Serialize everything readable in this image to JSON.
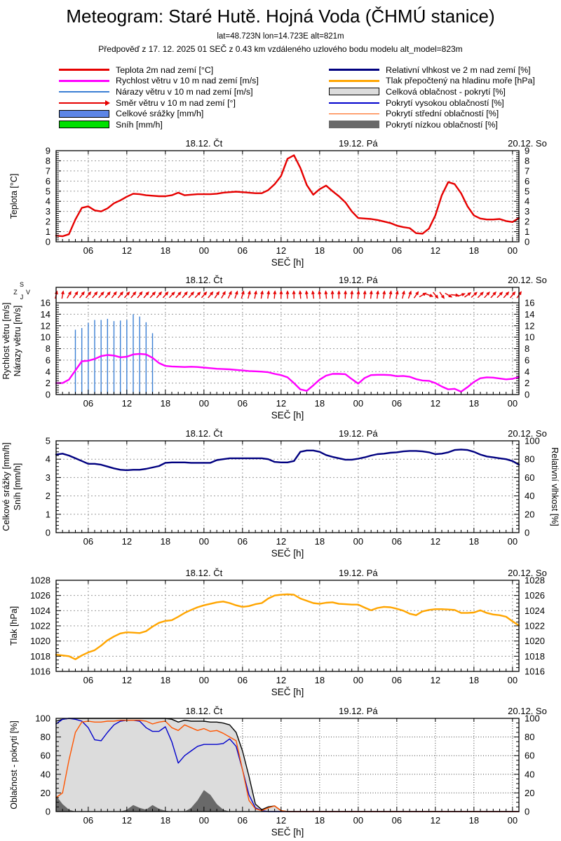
{
  "header": {
    "title": "Meteogram: Staré Hutě. Hojná Voda (ČHMÚ stanice)",
    "subtitle1": "lat=48.723N lon=14.723E alt=821m",
    "subtitle2": "Předpověď z 17. 12. 2025 01 SEČ z 0.43 km vzdáleného uzlového bodu modelu alt_model=823m"
  },
  "legend": {
    "left": [
      {
        "label": "Teplota 2m nad zemí [°C]",
        "swatch": "line-thick",
        "color": "#e60000"
      },
      {
        "label": "Rychlost větru v 10 m nad zemí [m/s]",
        "swatch": "line-thick",
        "color": "#ff00ff"
      },
      {
        "label": "Nárazy větru v 10 m nad zemí [m/s]",
        "swatch": "line-thin",
        "color": "#3b7fd4"
      },
      {
        "label": "Směr větru v 10 m nad zemí [°]",
        "swatch": "arrow",
        "color": "#e60000"
      },
      {
        "label": "Celkové srážky [mm/h]",
        "swatch": "box",
        "color": "#5c85e6"
      },
      {
        "label": "Sníh [mm/h]",
        "swatch": "box",
        "color": "#00e000"
      }
    ],
    "right": [
      {
        "label": "Relativní vlhkost ve 2 m nad zemí [%]",
        "swatch": "line-thick",
        "color": "#000080"
      },
      {
        "label": "Tlak přepočtený na hladinu moře [hPa]",
        "swatch": "line-thick",
        "color": "#ffa500"
      },
      {
        "label": "Celková oblačnost - pokrytí [%]",
        "swatch": "box",
        "color": "#dcdcdc"
      },
      {
        "label": "Pokrytí vysokou oblačností [%]",
        "swatch": "line-thin",
        "color": "#0000cc"
      },
      {
        "label": "Pokrytí střední oblačností [%]",
        "swatch": "line-thin",
        "color": "#ff5500"
      },
      {
        "label": "Pokrytí nízkou oblačností [%]",
        "swatch": "box-noborder",
        "color": "#696969"
      }
    ]
  },
  "axis": {
    "xlabel": "SEČ [h]",
    "x_start": "17.12. 01:00 SEČ",
    "x_step_hours": 1,
    "x_tick_hours": [
      6,
      12,
      18,
      24,
      30,
      36,
      42,
      48,
      54,
      60,
      66,
      72
    ],
    "x_tick_labels": [
      "06",
      "12",
      "18",
      "00",
      "06",
      "12",
      "18",
      "00",
      "06",
      "12",
      "18",
      "00"
    ],
    "day_labels": [
      {
        "hour": 24,
        "label": "18.12. Čt"
      },
      {
        "hour": 48,
        "label": "19.12. Pá"
      },
      {
        "hour": 72,
        "label": "20.12. So"
      }
    ],
    "compass": {
      "n": "S",
      "s": "J",
      "e": "V",
      "w": "Z"
    }
  },
  "chart_data": [
    {
      "type": "line",
      "name": "temperature",
      "ylabel": "Teplota [°C]",
      "ylim": [
        0,
        9
      ],
      "yticks": [
        0,
        1,
        2,
        3,
        4,
        5,
        6,
        7,
        8,
        9
      ],
      "series": [
        {
          "name": "Teplota 2m nad zemí [°C]",
          "color": "#e60000",
          "values": [
            0.6,
            0.55,
            0.75,
            2.2,
            3.35,
            3.5,
            3.1,
            3.0,
            3.3,
            3.8,
            4.1,
            4.45,
            4.75,
            4.7,
            4.6,
            4.55,
            4.5,
            4.5,
            4.6,
            4.85,
            4.6,
            4.65,
            4.7,
            4.7,
            4.7,
            4.75,
            4.85,
            4.9,
            4.95,
            4.9,
            4.85,
            4.8,
            4.8,
            5.1,
            5.7,
            6.5,
            8.2,
            8.55,
            7.3,
            5.6,
            4.65,
            5.2,
            5.55,
            5.0,
            4.5,
            3.9,
            3.0,
            2.35,
            2.3,
            2.25,
            2.15,
            2.0,
            1.85,
            1.6,
            1.45,
            1.35,
            0.85,
            0.8,
            1.3,
            2.6,
            4.6,
            5.9,
            5.7,
            4.8,
            3.5,
            2.6,
            2.3,
            2.2,
            2.2,
            2.25,
            2.05,
            1.95,
            2.35
          ]
        }
      ]
    },
    {
      "type": "line+bars+arrows",
      "name": "wind",
      "ylabel_lines": [
        "Rychlost větru [m/s]",
        "Nárazy větru [m/s]"
      ],
      "ylim": [
        0,
        16
      ],
      "yticks": [
        0,
        2,
        4,
        6,
        8,
        10,
        12,
        14,
        16
      ],
      "series": [
        {
          "name": "Rychlost větru v 10 m nad zemí [m/s]",
          "type": "line",
          "color": "#ff00ff",
          "values": [
            2.0,
            2.0,
            2.6,
            4.2,
            5.8,
            5.9,
            6.2,
            6.7,
            6.9,
            6.8,
            6.5,
            6.6,
            7.0,
            7.1,
            7.0,
            6.4,
            5.5,
            5.0,
            4.9,
            4.85,
            4.8,
            4.85,
            4.8,
            4.7,
            4.6,
            4.5,
            4.45,
            4.4,
            4.3,
            4.2,
            4.1,
            4.05,
            4.0,
            3.9,
            3.6,
            3.4,
            3.0,
            2.0,
            0.9,
            0.65,
            1.6,
            2.6,
            3.3,
            3.6,
            3.6,
            3.55,
            2.7,
            1.9,
            2.9,
            3.4,
            3.45,
            3.45,
            3.4,
            3.2,
            3.25,
            3.1,
            2.7,
            2.45,
            2.4,
            2.0,
            1.4,
            0.9,
            1.0,
            0.5,
            1.3,
            2.2,
            2.85,
            3.0,
            2.95,
            2.8,
            2.65,
            2.75,
            3.05
          ]
        },
        {
          "name": "Nárazy větru v 10 m nad zemí [m/s]",
          "type": "bars",
          "color": "#3b7fd4",
          "start_hour": 4,
          "values": [
            11.3,
            11.6,
            12.5,
            13.0,
            13.0,
            13.2,
            12.8,
            12.9,
            13.0,
            14.0,
            13.6,
            12.6,
            10.7
          ]
        },
        {
          "name": "Směr větru v 10 m nad zemí [°]",
          "type": "arrows",
          "color": "#e60000",
          "angles_deg": [
            75,
            80,
            60,
            55,
            52,
            50,
            50,
            48,
            50,
            52,
            50,
            48,
            50,
            52,
            50,
            48,
            50,
            48,
            46,
            48,
            50,
            48,
            46,
            48,
            50,
            55,
            60,
            65,
            70,
            72,
            75,
            78,
            80,
            82,
            85,
            88,
            90,
            92,
            95,
            97,
            98,
            96,
            95,
            92,
            90,
            88,
            86,
            85,
            85,
            84,
            83,
            82,
            80,
            78,
            76,
            70,
            55,
            30,
            -20,
            -50,
            -55,
            -30,
            -5,
            20,
            35,
            42,
            45,
            47,
            48,
            46,
            48,
            50,
            55
          ]
        }
      ]
    },
    {
      "type": "line",
      "name": "precipitation-humidity",
      "ylabel_lines": [
        "Celkové srážky [mm/h]",
        "Sníh [mm/h]"
      ],
      "ylim_left": [
        0,
        5
      ],
      "yticks_left": [
        0,
        1,
        2,
        3,
        4,
        5
      ],
      "ylabel_right": "Relativní vlhkost [%]",
      "ylim_right": [
        0,
        100
      ],
      "yticks_right": [
        0,
        20,
        40,
        60,
        80,
        100
      ],
      "series": [
        {
          "name": "Relativní vlhkost ve 2 m nad zemí [%]",
          "axis": "right",
          "color": "#000080",
          "values": [
            85,
            86,
            84,
            81,
            78,
            75,
            75,
            74,
            72,
            70,
            68.5,
            68,
            68.5,
            68.5,
            69.5,
            71,
            72.5,
            76,
            76.5,
            76.5,
            76.5,
            76,
            76,
            76,
            76,
            79,
            80,
            81,
            81,
            81,
            81,
            81,
            81,
            80,
            77,
            76.5,
            76.5,
            78,
            88,
            89.5,
            89.5,
            88,
            84.5,
            82.5,
            81,
            79.5,
            79.5,
            80.5,
            82,
            84,
            85.5,
            86,
            87,
            87.5,
            88.5,
            89,
            89,
            88.5,
            87.5,
            85.5,
            86,
            87.5,
            90,
            90.5,
            90,
            88,
            85,
            83,
            82,
            81,
            80,
            78,
            74
          ]
        }
      ]
    },
    {
      "type": "line",
      "name": "pressure",
      "ylabel": "Tlak [hPa]",
      "ylim": [
        1016,
        1028
      ],
      "yticks": [
        1016,
        1018,
        1020,
        1022,
        1024,
        1026,
        1028
      ],
      "series": [
        {
          "name": "Tlak přepočtený na hladinu moře [hPa]",
          "color": "#ffa500",
          "values": [
            1018.2,
            1018.1,
            1018.0,
            1017.6,
            1018.1,
            1018.5,
            1018.8,
            1019.4,
            1020.1,
            1020.6,
            1021.0,
            1021.15,
            1021.1,
            1021.05,
            1021.3,
            1021.9,
            1022.4,
            1022.65,
            1022.75,
            1023.2,
            1023.7,
            1024.1,
            1024.45,
            1024.7,
            1024.9,
            1025.1,
            1025.2,
            1025.0,
            1024.7,
            1024.5,
            1024.6,
            1024.85,
            1025.0,
            1025.6,
            1026.0,
            1026.1,
            1026.15,
            1026.1,
            1025.6,
            1025.3,
            1025.0,
            1024.9,
            1025.05,
            1025.1,
            1024.9,
            1024.85,
            1024.8,
            1024.8,
            1024.4,
            1024.05,
            1024.35,
            1024.5,
            1024.45,
            1024.25,
            1024.0,
            1023.6,
            1023.4,
            1023.9,
            1024.1,
            1024.2,
            1024.2,
            1024.15,
            1024.1,
            1023.7,
            1023.7,
            1023.75,
            1024.05,
            1023.7,
            1023.5,
            1023.4,
            1023.2,
            1022.6,
            1022.05
          ]
        }
      ]
    },
    {
      "type": "area+lines",
      "name": "cloud-cover",
      "ylabel": "Oblačnost - pokrytí [%]",
      "ylim": [
        0,
        100
      ],
      "yticks": [
        0,
        20,
        40,
        60,
        80,
        100
      ],
      "series": [
        {
          "name": "Celková oblačnost - pokrytí [%]",
          "type": "area",
          "fill": "#dcdcdc",
          "stroke": "#000000",
          "values": [
            97,
            99,
            100,
            100,
            100,
            100,
            100,
            100,
            100,
            100,
            100,
            100,
            100,
            100,
            100,
            100,
            100,
            100,
            99,
            96,
            98,
            97,
            97,
            97,
            96,
            96,
            95,
            93,
            85,
            65,
            38,
            8,
            2,
            5,
            6,
            1,
            0,
            0,
            0,
            0,
            0,
            0,
            0,
            0,
            0,
            0,
            0,
            0,
            0,
            0,
            0,
            0,
            0,
            0,
            0,
            0,
            0,
            0,
            0,
            0,
            0,
            0,
            0,
            0,
            0,
            0,
            0,
            0,
            0,
            0,
            0,
            0,
            0
          ]
        },
        {
          "name": "Pokrytí nízkou oblačností [%]",
          "type": "area",
          "fill": "#696969",
          "values": [
            17,
            8,
            2,
            0,
            0,
            0,
            0,
            0,
            0,
            0,
            0,
            2,
            7,
            4,
            2,
            7,
            3,
            1,
            0,
            0,
            0,
            4,
            12,
            23,
            18,
            8,
            2,
            0,
            0,
            0,
            0,
            0,
            0,
            0,
            0,
            0,
            0,
            0,
            0,
            0,
            0,
            0,
            0,
            0,
            0,
            0,
            0,
            0,
            0,
            0,
            0,
            0,
            0,
            0,
            0,
            0,
            0,
            0,
            0,
            0,
            0,
            0,
            0,
            0,
            0,
            0,
            0,
            0,
            0,
            0,
            0,
            0,
            0
          ]
        },
        {
          "name": "Pokrytí vysokou oblačností [%]",
          "type": "line",
          "color": "#0000cc",
          "values": [
            94,
            99,
            100,
            99,
            97,
            90,
            77,
            76,
            85,
            93,
            97,
            98,
            98,
            97,
            90,
            86,
            86,
            91,
            75,
            52,
            60,
            65,
            70,
            72,
            72,
            72,
            73,
            78,
            70,
            45,
            18,
            4,
            1,
            0,
            0,
            0,
            0,
            0,
            0,
            0,
            0,
            0,
            0,
            0,
            0,
            0,
            0,
            0,
            0,
            0,
            0,
            0,
            0,
            0,
            0,
            0,
            0,
            0,
            0,
            0,
            0,
            0,
            0,
            0,
            0,
            0,
            0,
            0,
            0,
            0,
            0,
            0,
            0
          ]
        },
        {
          "name": "Pokrytí střední oblačností [%]",
          "type": "line",
          "color": "#ff5500",
          "values": [
            15,
            20,
            55,
            85,
            96,
            97,
            96,
            96,
            97,
            97,
            98,
            98,
            98,
            98,
            97,
            94,
            96,
            97,
            90,
            87,
            93,
            90,
            87,
            89,
            86,
            87,
            84,
            80,
            76,
            45,
            12,
            3,
            1,
            4,
            6,
            1,
            0,
            0,
            0,
            0,
            0,
            0,
            0,
            0,
            0,
            0,
            0,
            0,
            0,
            0,
            0,
            0,
            0,
            0,
            0,
            0,
            0,
            0,
            0,
            0,
            0,
            0,
            0,
            0,
            0,
            0,
            0,
            0,
            0,
            0,
            0,
            0,
            0
          ]
        }
      ]
    }
  ]
}
